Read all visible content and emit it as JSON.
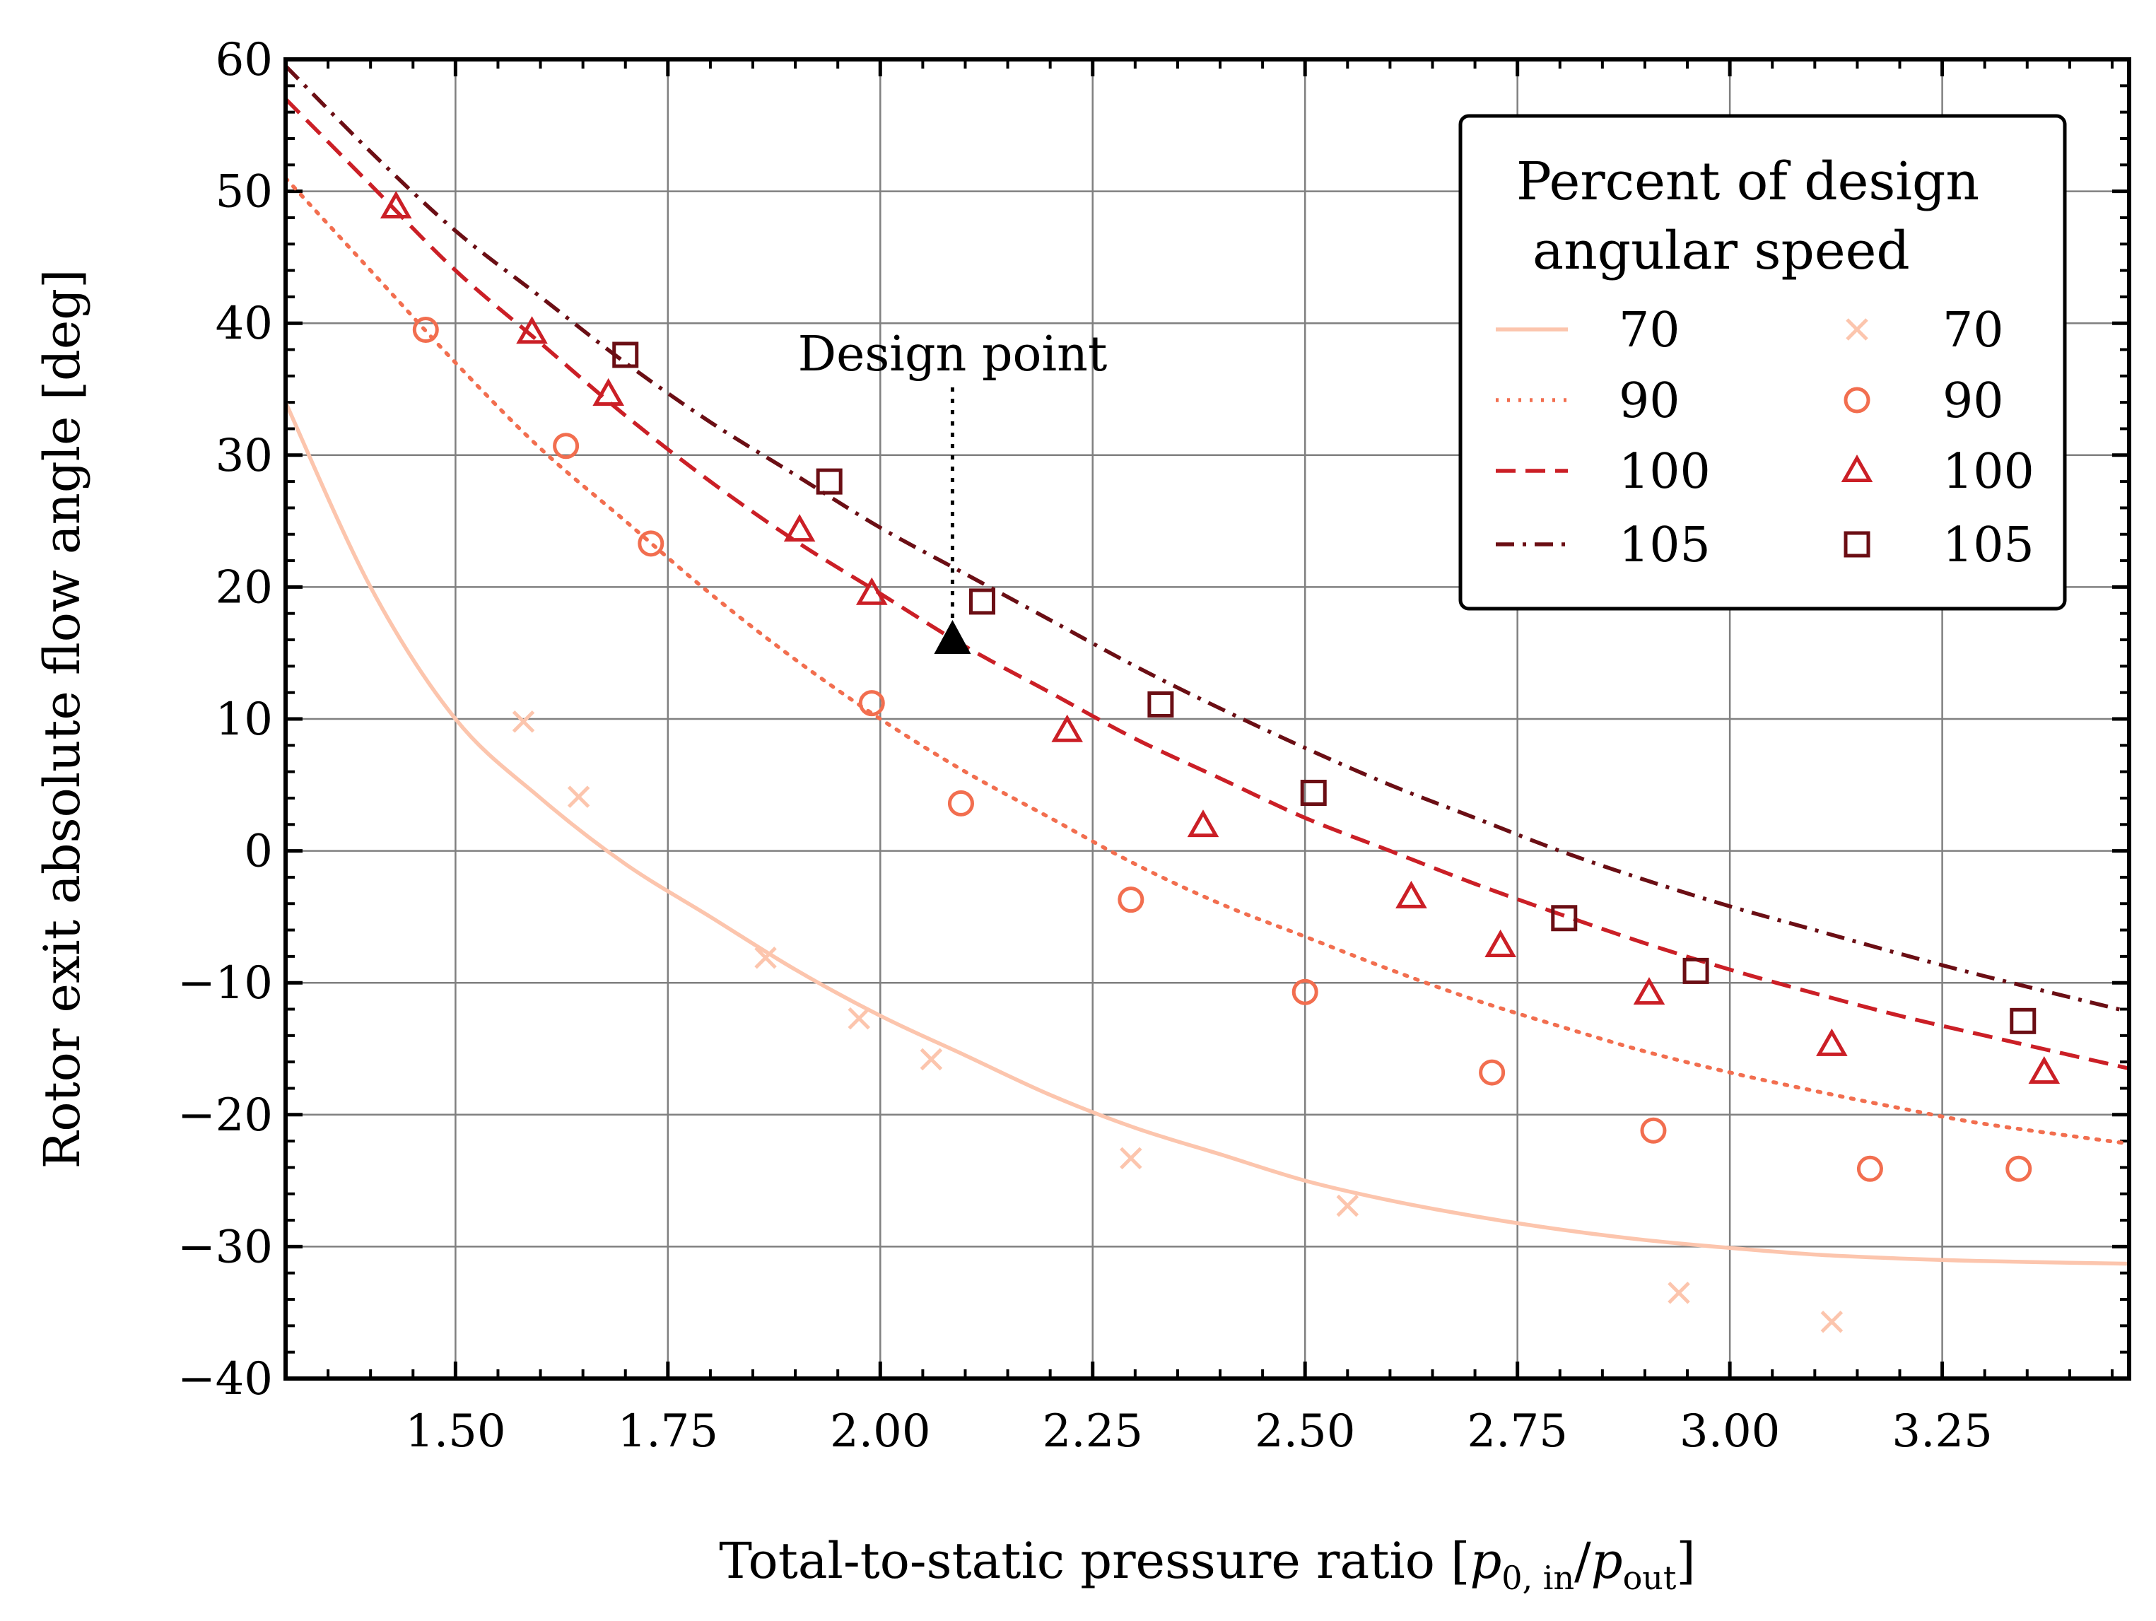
{
  "chart_data": {
    "type": "line",
    "xlabel": "Total-to-static pressure ratio",
    "xlabel_math": {
      "open": "[",
      "p": "p",
      "sub1": "0, in",
      "slash": "/",
      "sub2": "out",
      "close": "]"
    },
    "ylabel": "Rotor exit absolute flow angle [deg]",
    "xlim": [
      1.3,
      3.47
    ],
    "ylim": [
      -40,
      60
    ],
    "xticks": [
      1.5,
      1.75,
      2.0,
      2.25,
      2.5,
      2.75,
      3.0,
      3.25
    ],
    "xtick_labels": [
      "1.50",
      "1.75",
      "2.00",
      "2.25",
      "2.50",
      "2.75",
      "3.00",
      "3.25"
    ],
    "yticks": [
      -40,
      -30,
      -20,
      -10,
      0,
      10,
      20,
      30,
      40,
      50,
      60
    ],
    "ytick_labels": [
      "−40",
      "−30",
      "−20",
      "−10",
      "0",
      "10",
      "20",
      "30",
      "40",
      "50",
      "60"
    ],
    "grid": true,
    "legend": {
      "title_lines": [
        "Percent of design",
        "angular speed"
      ],
      "position": "top-right"
    },
    "annotation": {
      "label": "Design point",
      "x": 2.085,
      "y": 16
    },
    "series": [
      {
        "name": "70",
        "kind": "line",
        "style": "solid",
        "color": "#FCC5AD",
        "x": [
          1.3,
          1.4,
          1.5,
          1.6,
          1.7,
          1.8,
          1.9,
          2.0,
          2.1,
          2.2,
          2.3,
          2.4,
          2.5,
          2.6,
          2.7,
          2.8,
          2.9,
          3.0,
          3.1,
          3.2,
          3.3,
          3.47
        ],
        "y": [
          34,
          20,
          10,
          4,
          -1,
          -5,
          -9,
          -12.5,
          -15.5,
          -18.5,
          -21,
          -23,
          -25,
          -26.5,
          -27.7,
          -28.7,
          -29.5,
          -30.1,
          -30.6,
          -30.9,
          -31.1,
          -31.3
        ]
      },
      {
        "name": "90",
        "kind": "line",
        "style": "dotted",
        "color": "#F26E4F",
        "x": [
          1.3,
          1.4,
          1.5,
          1.6,
          1.7,
          1.8,
          1.9,
          2.0,
          2.1,
          2.2,
          2.3,
          2.4,
          2.5,
          2.6,
          2.7,
          2.8,
          2.9,
          3.0,
          3.1,
          3.2,
          3.3,
          3.47
        ],
        "y": [
          51,
          44,
          37,
          30.5,
          25,
          19.5,
          14.5,
          10,
          6,
          2.5,
          -1,
          -4,
          -6.5,
          -9,
          -11.3,
          -13.3,
          -15.2,
          -16.8,
          -18.2,
          -19.5,
          -20.7,
          -22.2
        ]
      },
      {
        "name": "100",
        "kind": "line",
        "style": "dashed",
        "color": "#CB1F26",
        "x": [
          1.3,
          1.4,
          1.5,
          1.6,
          1.7,
          1.8,
          1.9,
          2.0,
          2.1,
          2.2,
          2.3,
          2.4,
          2.5,
          2.6,
          2.7,
          2.8,
          2.9,
          3.0,
          3.1,
          3.2,
          3.3,
          3.47
        ],
        "y": [
          57,
          50.5,
          44,
          38.5,
          33,
          28,
          23.5,
          19.5,
          15.5,
          12,
          8.5,
          5.5,
          2.5,
          0,
          -2.5,
          -4.8,
          -7,
          -9,
          -10.8,
          -12.5,
          -14,
          -16.5
        ]
      },
      {
        "name": "105",
        "kind": "line",
        "style": "dashdot",
        "color": "#6B0E14",
        "x": [
          1.3,
          1.4,
          1.5,
          1.6,
          1.7,
          1.8,
          1.9,
          2.0,
          2.1,
          2.2,
          2.3,
          2.4,
          2.5,
          2.6,
          2.7,
          2.8,
          2.9,
          3.0,
          3.1,
          3.2,
          3.3,
          3.47
        ],
        "y": [
          59.5,
          53,
          47,
          42,
          37,
          32.5,
          28.5,
          24.5,
          21,
          17.5,
          14,
          10.8,
          7.8,
          5,
          2.5,
          0,
          -2.2,
          -4.2,
          -6,
          -7.8,
          -9.5,
          -12.2
        ]
      },
      {
        "name": "70",
        "kind": "marker",
        "marker": "x",
        "color": "#FCC5AD",
        "x": [
          1.58,
          1.645,
          1.865,
          1.975,
          2.06,
          2.295,
          2.55,
          2.94,
          3.12
        ],
        "y": [
          9.8,
          4.1,
          -8.1,
          -12.7,
          -15.8,
          -23.3,
          -26.9,
          -33.5,
          -35.7
        ]
      },
      {
        "name": "90",
        "kind": "marker",
        "marker": "circle",
        "color": "#F26E4F",
        "x": [
          1.465,
          1.63,
          1.73,
          1.99,
          2.095,
          2.295,
          2.5,
          2.72,
          2.91,
          3.165,
          3.34
        ],
        "y": [
          39.5,
          30.7,
          23.3,
          11.2,
          3.6,
          -3.7,
          -10.7,
          -16.8,
          -21.2,
          -24.1,
          -24.1
        ]
      },
      {
        "name": "100",
        "kind": "marker",
        "marker": "triangle",
        "color": "#CB1F26",
        "x": [
          1.43,
          1.59,
          1.68,
          1.905,
          1.99,
          2.22,
          2.38,
          2.625,
          2.73,
          2.905,
          3.12,
          3.37
        ],
        "y": [
          48.8,
          39.3,
          34.6,
          24.3,
          19.5,
          9.1,
          1.9,
          -3.5,
          -7.2,
          -10.8,
          -14.7,
          -16.8
        ]
      },
      {
        "name": "105",
        "kind": "marker",
        "marker": "square",
        "color": "#6B0E14",
        "x": [
          1.7,
          1.94,
          2.12,
          2.33,
          2.51,
          2.805,
          2.96,
          3.345
        ],
        "y": [
          37.6,
          28.0,
          18.9,
          11.1,
          4.4,
          -5.1,
          -9.1,
          -12.9
        ]
      }
    ]
  }
}
